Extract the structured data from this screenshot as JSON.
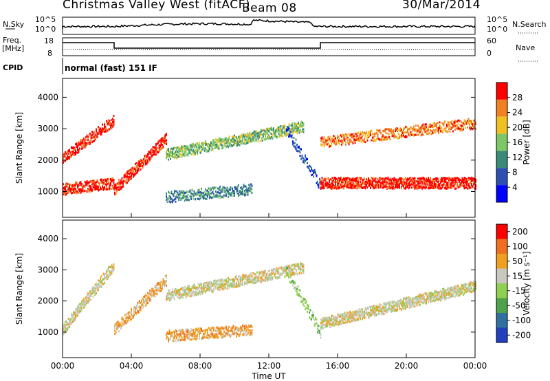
{
  "header": {
    "title": "Christmas Valley West (fitACF)",
    "beam": "Beam 08",
    "date": "30/Mar/2014"
  },
  "panels": {
    "nsky_label": "N.Sky",
    "nsky_ticks": [
      "10^5",
      "10^0"
    ],
    "nsearch_label": "N.Search",
    "nsearch_ticks": [
      "10^5",
      "10^0"
    ],
    "freq_label_1": "Freq.",
    "freq_label_2": "[MHz]",
    "freq_ticks": [
      "18",
      "8"
    ],
    "nave_label": "Nave",
    "nave_ticks": [
      "60",
      "0"
    ],
    "cpid_label": "CPID",
    "cpid_text": "normal (fast) 151 IF"
  },
  "chart_data": [
    {
      "type": "heatmap",
      "title": "",
      "xlabel": "Time UT",
      "ylabel": "Slant Range [km]",
      "x_ticks": [
        "00:00",
        "04:00",
        "08:00",
        "12:00",
        "16:00",
        "20:00",
        "00:00"
      ],
      "xlim": [
        0,
        24
      ],
      "y_ticks": [
        1000,
        2000,
        3000,
        4000
      ],
      "ylim": [
        180,
        4600
      ],
      "colorbar_label": "Power [dB]",
      "colorbar_ticks": [
        4,
        8,
        12,
        16,
        20,
        24,
        28
      ],
      "colorbar_range": [
        0,
        32
      ],
      "colorbar_colors": [
        "#0000ff",
        "#2c4fb4",
        "#3a8a7a",
        "#7dc866",
        "#f0c020",
        "#f08020",
        "#ff0000"
      ]
    },
    {
      "type": "heatmap",
      "title": "",
      "xlabel": "Time UT",
      "ylabel": "Slant Range [km]",
      "x_ticks": [
        "00:00",
        "04:00",
        "08:00",
        "12:00",
        "16:00",
        "20:00",
        "00:00"
      ],
      "xlim": [
        0,
        24
      ],
      "y_ticks": [
        1000,
        2000,
        3000,
        4000
      ],
      "ylim": [
        180,
        4600
      ],
      "colorbar_label": "Velocity [m s⁻¹]",
      "colorbar_ticks": [
        "200",
        "100",
        "50",
        "15",
        "-15",
        "-50",
        "-100",
        "-200"
      ],
      "colorbar_colors": [
        "#2040c0",
        "#3070a0",
        "#4ea24a",
        "#90d050",
        "#c8c8c0",
        "#f0a020",
        "#f07020",
        "#ff0000"
      ]
    }
  ]
}
